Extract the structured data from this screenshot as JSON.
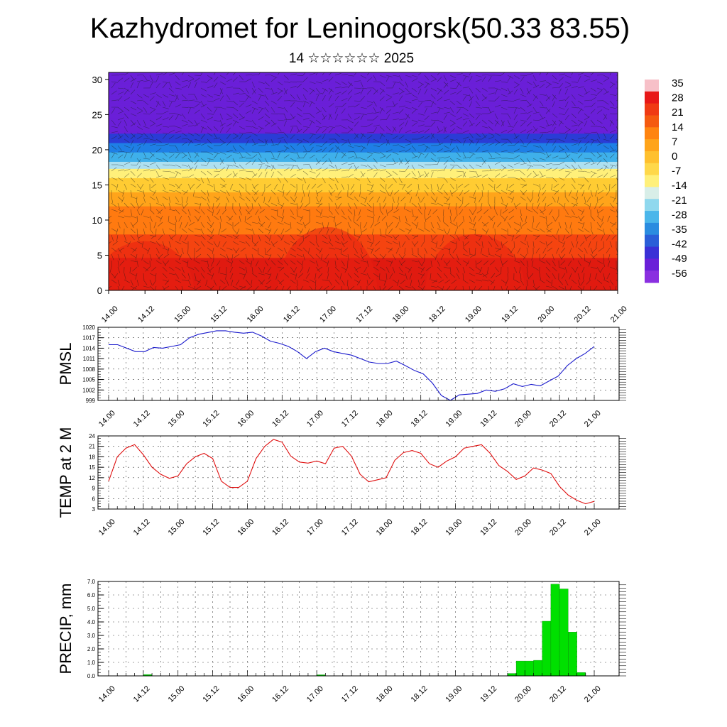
{
  "title": "Kazhydromet for Leninogorsk(50.33 83.55)",
  "subtitle": "14 ☆☆☆☆☆☆ 2025",
  "chart_data": [
    {
      "type": "heatmap",
      "name": "",
      "ylim": [
        0,
        31
      ],
      "y_ticks": [
        "0",
        "5",
        "10",
        "15",
        "20",
        "25",
        "30"
      ],
      "x_ticks": [
        "14.00",
        "14.12",
        "15.00",
        "15.12",
        "16.00",
        "16.12",
        "17.00",
        "17.12",
        "18.00",
        "18.12",
        "19.00",
        "19.12",
        "20.00",
        "20.12",
        "21.00"
      ],
      "colorbar_labels": [
        "35",
        "28",
        "21",
        "14",
        "7",
        "0",
        "-7",
        "-14",
        "-21",
        "-28",
        "-35",
        "-42",
        "-49",
        "-56"
      ],
      "colors": [
        "#6a1fd8",
        "#2a3cd6",
        "#1f7fe6",
        "#3fb0ea",
        "#aee0f0",
        "#fff07a",
        "#ffcc33",
        "#ffa41a",
        "#ff7a10",
        "#f54410",
        "#e01a10"
      ],
      "profile": [
        {
          "z": 0,
          "t": 24
        },
        {
          "z": 4,
          "t": 18
        },
        {
          "z": 8,
          "t": 10
        },
        {
          "z": 12,
          "t": 2
        },
        {
          "z": 15,
          "t": -8
        },
        {
          "z": 17,
          "t": -18
        },
        {
          "z": 19,
          "t": -30
        },
        {
          "z": 21,
          "t": -42
        },
        {
          "z": 23,
          "t": -52
        },
        {
          "z": 26,
          "t": -56
        },
        {
          "z": 28,
          "t": -50
        },
        {
          "z": 31,
          "t": -56
        }
      ],
      "grid": false
    },
    {
      "type": "line",
      "ylabel": "PMSL",
      "ylim": [
        999,
        1020
      ],
      "y_ticks": [
        "999",
        "1002",
        "1005",
        "1008",
        "1011",
        "1014",
        "1017",
        "1020"
      ],
      "x_ticks": [
        "14.00",
        "14.12",
        "15.00",
        "15.12",
        "16.00",
        "16.12",
        "17.00",
        "17.12",
        "18.00",
        "18.12",
        "19.00",
        "19.12",
        "20.00",
        "20.12",
        "21.00"
      ],
      "x_step_hours": 3,
      "color": "#1a1acc",
      "values": [
        1015,
        1015,
        1014,
        1013,
        1013,
        1014.2,
        1014,
        1014.5,
        1015,
        1017,
        1018,
        1018.5,
        1019,
        1019,
        1018.6,
        1018.3,
        1018.6,
        1017.5,
        1016,
        1015.4,
        1014.5,
        1013,
        1011,
        1013,
        1014,
        1013,
        1012.5,
        1012,
        1011,
        1010,
        1009.6,
        1009.6,
        1010.3,
        1009,
        1007.6,
        1006.6,
        1004,
        1000.4,
        999,
        1000.6,
        1000.8,
        1001,
        1002,
        1001.6,
        1002.3,
        1003.8,
        1003,
        1003.6,
        1003.2,
        1004.6,
        1006,
        1009,
        1011,
        1012.5,
        1014.5
      ],
      "grid": true
    },
    {
      "type": "line",
      "ylabel": "TEMP at 2 M",
      "ylim": [
        3,
        24
      ],
      "y_ticks": [
        "3",
        "6",
        "9",
        "12",
        "15",
        "18",
        "21",
        "24"
      ],
      "x_ticks": [
        "14.00",
        "14.12",
        "15.00",
        "15.12",
        "16.00",
        "16.12",
        "17.00",
        "17.12",
        "18.00",
        "18.12",
        "19.00",
        "19.12",
        "20.00",
        "20.12",
        "21.00"
      ],
      "x_step_hours": 3,
      "color": "#e01010",
      "values": [
        11,
        18,
        20.5,
        21.5,
        18.6,
        15,
        13,
        11.8,
        12.5,
        16,
        18,
        19,
        17.5,
        11,
        9.2,
        9.2,
        11,
        17.5,
        21,
        23,
        22.2,
        18.2,
        16.5,
        16.2,
        16.8,
        16,
        20.5,
        21,
        18.2,
        13,
        10.8,
        11.4,
        12,
        17,
        19.2,
        19.8,
        19,
        16,
        15,
        16.8,
        18,
        20.5,
        21,
        21.5,
        19,
        15.5,
        13.8,
        11.5,
        12.5,
        14.8,
        14.2,
        13.2,
        9.5,
        7,
        5.5,
        4.5,
        5.2
      ],
      "grid": true
    },
    {
      "type": "bar",
      "ylabel": "PRECIP, mm",
      "ylim": [
        0,
        7
      ],
      "y_ticks": [
        "0.0",
        "1.0",
        "2.0",
        "3.0",
        "4.0",
        "5.0",
        "6.0",
        "7.0"
      ],
      "x_ticks": [
        "14.00",
        "14.12",
        "15.00",
        "15.12",
        "16.00",
        "16.12",
        "17.00",
        "17.12",
        "18.00",
        "18.12",
        "19.00",
        "19.12",
        "20.00",
        "20.12",
        "21.00"
      ],
      "x_step_hours": 3,
      "color": "#00e000",
      "values": [
        0,
        0,
        0,
        0,
        0.1,
        0,
        0,
        0,
        0,
        0,
        0,
        0,
        0,
        0,
        0,
        0,
        0,
        0,
        0,
        0,
        0,
        0,
        0,
        0,
        0.08,
        0,
        0,
        0,
        0,
        0,
        0,
        0,
        0,
        0,
        0,
        0,
        0,
        0,
        0,
        0,
        0,
        0,
        0,
        0,
        0,
        0,
        0.18,
        1.1,
        1.1,
        1.15,
        4.05,
        6.8,
        6.45,
        3.25,
        0.25,
        0
      ],
      "grid": true
    }
  ]
}
